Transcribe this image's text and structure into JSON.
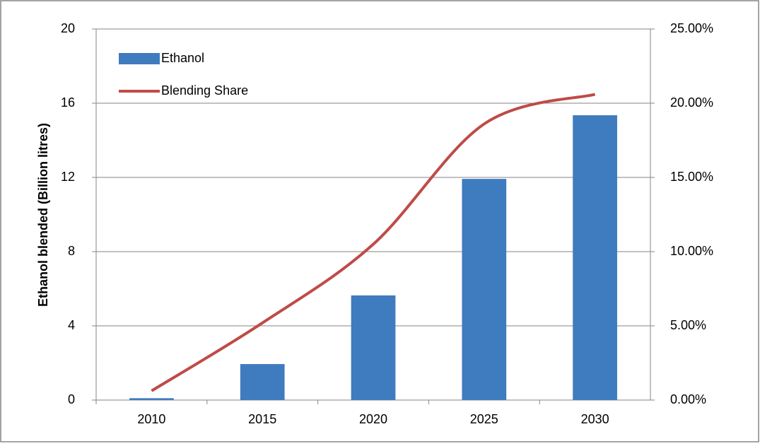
{
  "chart_data": {
    "type": "bar_line",
    "y_label": "Ethanol blended (Billion litres)",
    "categories": [
      "2010",
      "2015",
      "2020",
      "2025",
      "2030"
    ],
    "series": [
      {
        "name": "Ethanol",
        "type": "bar",
        "color": "#3f7bbf",
        "values": [
          0.1,
          1.94,
          5.64,
          11.92,
          15.35
        ]
      },
      {
        "name": "Blending Share",
        "type": "line",
        "axis": "y2",
        "color": "#be4b48",
        "values": [
          0.62,
          5.2,
          10.5,
          18.6,
          20.6
        ]
      }
    ],
    "ylim": [
      0,
      20
    ],
    "yticks": [
      0,
      4,
      8,
      12,
      16,
      20
    ],
    "y2lim": [
      0,
      25
    ],
    "y2ticks": [
      {
        "value": 0,
        "label": "0.00%"
      },
      {
        "value": 5,
        "label": "5.00%"
      },
      {
        "value": 10,
        "label": "10.00%"
      },
      {
        "value": 15,
        "label": "15.00%"
      },
      {
        "value": 20,
        "label": "20.00%"
      },
      {
        "value": 25,
        "label": "25.00%"
      }
    ],
    "grid": true,
    "legend": "upper left"
  }
}
